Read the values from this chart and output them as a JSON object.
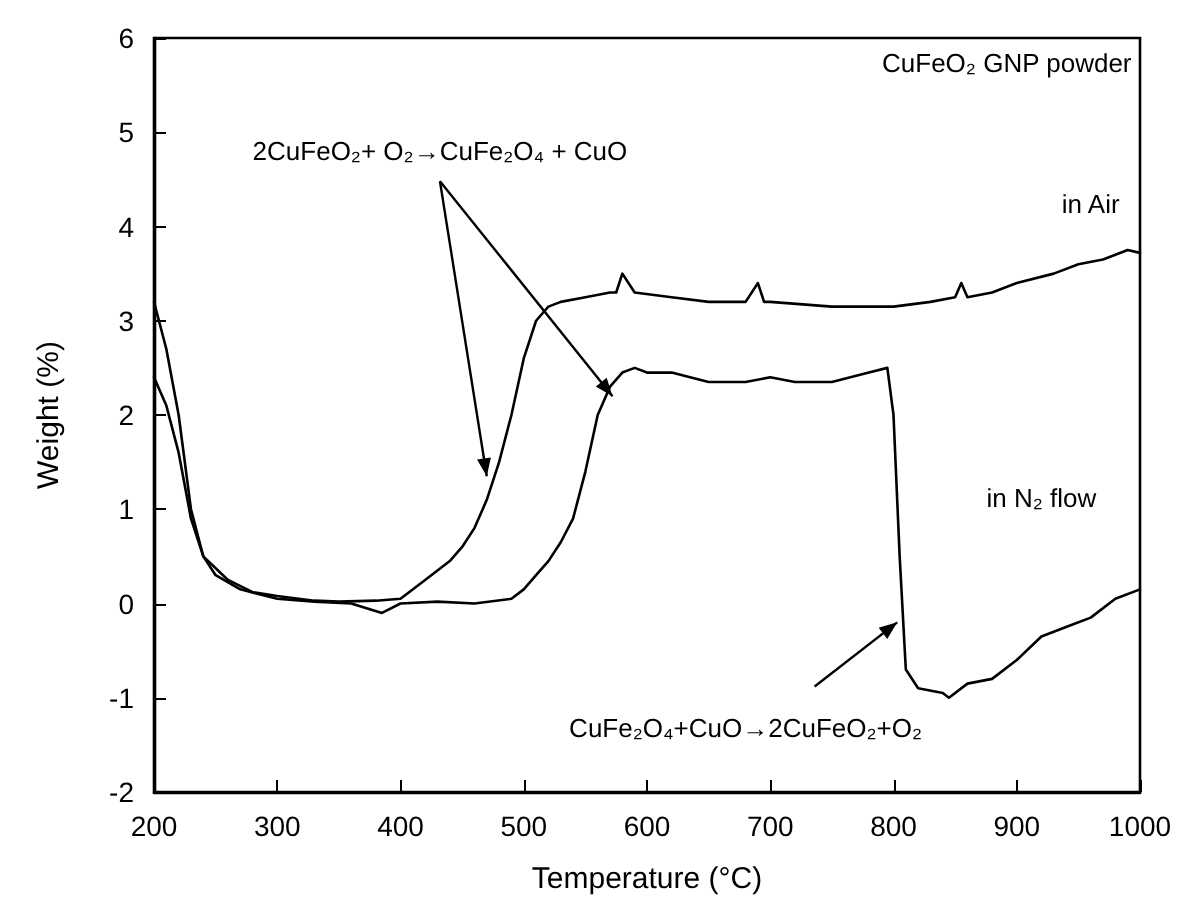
{
  "chart_data": {
    "type": "line",
    "xlabel": "Temperature (°C)",
    "ylabel": "Weight (%)",
    "xlim": [
      200,
      1000
    ],
    "xticks": [
      200,
      300,
      400,
      500,
      600,
      700,
      800,
      900,
      1000
    ],
    "ylim": [
      -2,
      6
    ],
    "yticks": [
      -2,
      -1,
      0,
      1,
      2,
      3,
      4,
      5,
      6
    ],
    "grid": false,
    "marker": "none",
    "line_style": "solid",
    "series": [
      {
        "color": "#000000",
        "x": [
          200,
          210,
          220,
          230,
          240,
          260,
          280,
          300,
          330,
          350,
          380,
          400,
          420,
          440,
          450,
          460,
          470,
          480,
          490,
          500,
          510,
          520,
          530,
          550,
          570,
          575,
          580,
          590,
          620,
          650,
          680,
          690,
          695,
          700,
          750,
          780,
          800,
          830,
          850,
          855,
          860,
          880,
          900,
          930,
          950,
          970,
          990,
          1000
        ],
        "values": [
          3.2,
          2.7,
          2.0,
          1.0,
          0.5,
          0.25,
          0.12,
          0.08,
          0.03,
          0.02,
          0.03,
          0.05,
          0.25,
          0.45,
          0.6,
          0.8,
          1.1,
          1.5,
          2.0,
          2.6,
          3.0,
          3.15,
          3.2,
          3.25,
          3.3,
          3.3,
          3.5,
          3.3,
          3.25,
          3.2,
          3.2,
          3.4,
          3.2,
          3.2,
          3.15,
          3.15,
          3.15,
          3.2,
          3.25,
          3.4,
          3.25,
          3.3,
          3.4,
          3.5,
          3.6,
          3.65,
          3.75,
          3.72
        ]
      },
      {
        "color": "#000000",
        "x": [
          200,
          210,
          220,
          230,
          240,
          250,
          270,
          300,
          330,
          360,
          385,
          400,
          430,
          460,
          490,
          500,
          510,
          520,
          530,
          540,
          550,
          560,
          570,
          580,
          590,
          600,
          620,
          650,
          680,
          700,
          720,
          750,
          780,
          795,
          800,
          805,
          810,
          820,
          840,
          845,
          860,
          880,
          900,
          920,
          940,
          960,
          980,
          1000
        ],
        "values": [
          2.4,
          2.1,
          1.6,
          0.9,
          0.5,
          0.3,
          0.15,
          0.05,
          0.02,
          0.0,
          -0.1,
          0.0,
          0.02,
          0.0,
          0.05,
          0.15,
          0.3,
          0.45,
          0.65,
          0.9,
          1.4,
          2.0,
          2.3,
          2.45,
          2.5,
          2.45,
          2.45,
          2.35,
          2.35,
          2.4,
          2.35,
          2.35,
          2.45,
          2.5,
          2.0,
          0.5,
          -0.7,
          -0.9,
          -0.95,
          -1.0,
          -0.85,
          -0.8,
          -0.6,
          -0.35,
          -0.25,
          -0.15,
          0.05,
          0.15
        ]
      }
    ],
    "annotations": [
      "CuFeO₂ GNP powder",
      {
        "text": "2CuFeO₂+ O₂→CuFe₂O₄ + CuO",
        "x": 470,
        "y": 1.35
      },
      "in Air",
      "in N₂ flow",
      {
        "text": "CuFe₂O₄+CuO→2CuFeO₂+O₂",
        "x": 803,
        "y": -0.2
      }
    ]
  }
}
